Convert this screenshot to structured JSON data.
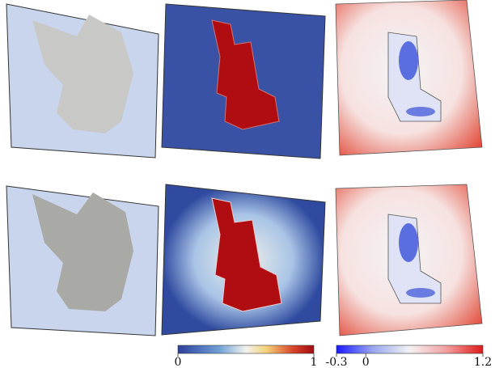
{
  "colorbars": [
    {
      "lim": [
        0,
        1
      ],
      "ticks": [
        0,
        1
      ]
    },
    {
      "lim": [
        -0.3,
        1.2
      ],
      "ticks": [
        -0.3,
        0,
        1.2
      ]
    }
  ]
}
